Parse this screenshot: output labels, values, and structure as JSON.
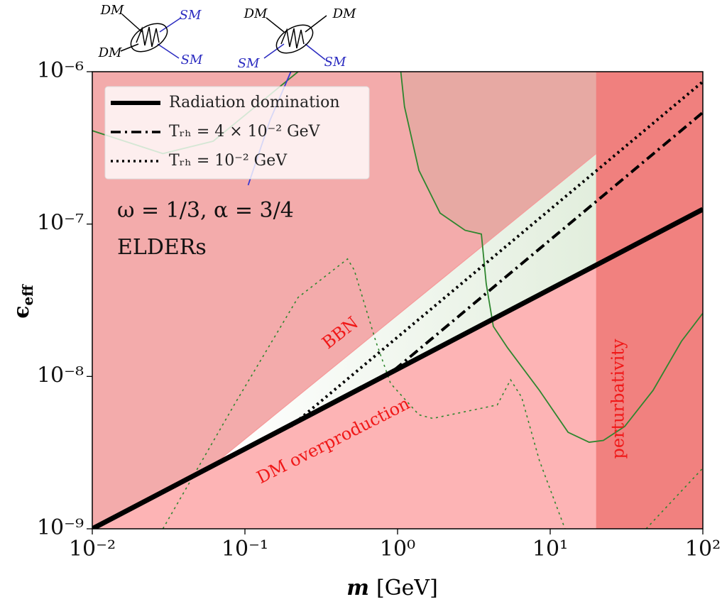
{
  "chart_data": {
    "type": "line",
    "xlabel": {
      "symbol": "m",
      "unit": "[GeV]"
    },
    "ylabel": {
      "symbol": "ϵ",
      "subscript": "eff"
    },
    "xscale": "log",
    "yscale": "log",
    "xlim": [
      0.01,
      100
    ],
    "ylim": [
      1e-09,
      1e-06
    ],
    "xticks": [
      {
        "value": 0.01,
        "label": "10⁻²"
      },
      {
        "value": 0.1,
        "label": "10⁻¹"
      },
      {
        "value": 1,
        "label": "10⁰"
      },
      {
        "value": 10,
        "label": "10¹"
      },
      {
        "value": 100,
        "label": "10²"
      }
    ],
    "yticks": [
      {
        "value": 1e-09,
        "label": "10⁻⁹"
      },
      {
        "value": 1e-08,
        "label": "10⁻⁸"
      },
      {
        "value": 1e-07,
        "label": "10⁻⁷"
      },
      {
        "value": 1e-06,
        "label": "10⁻⁶"
      }
    ],
    "legend": "upper left",
    "background": "#f3abab",
    "series": [
      {
        "name": "Radiation domination",
        "color": "#000000",
        "linestyle": "solid",
        "x": [
          0.01,
          100
        ],
        "values": [
          1e-09,
          1.25e-07
        ]
      },
      {
        "name": "Tᵣₕ = 4 × 10⁻² GeV",
        "color": "#000000",
        "linestyle": "dashdot",
        "x": [
          0.95,
          100
        ],
        "values": [
          1.1e-08,
          5.4e-07
        ]
      },
      {
        "name": "Tᵣₕ = 10⁻² GeV",
        "color": "#000000",
        "linestyle": "dotted",
        "x": [
          0.2,
          100
        ],
        "values": [
          4.7e-09,
          8.6e-07
        ]
      }
    ],
    "regions": [
      {
        "color": "#fdb4b5",
        "x": [
          0.01,
          100,
          100,
          0.01
        ],
        "y": [
          1e-09,
          1.25e-07,
          1e-09,
          1e-09
        ]
      },
      {
        "color": "#e7a9a3",
        "x": [
          1.05,
          1.11,
          1.38,
          1.9,
          2.77,
          3.54,
          3.81,
          4.3,
          20,
          20
        ],
        "y": [
          1e-06,
          5.9e-07,
          2.25e-07,
          1.18e-07,
          9.1e-08,
          8.6e-08,
          4.05e-08,
          2.3e-08,
          5.4e-08,
          1e-06
        ]
      },
      {
        "color": "#e2eedd",
        "x": [
          0.07,
          20,
          20
        ],
        "y": [
          2.9e-09,
          2.9e-07,
          5.4e-08
        ]
      },
      {
        "color": "#ef7876",
        "x": [
          20,
          100,
          100,
          20
        ],
        "y": [
          1e-09,
          1e-09,
          1e-06,
          1e-06
        ]
      }
    ],
    "curves": [
      {
        "color": "#2e862e",
        "linestyle": "solid",
        "x": [
          1.05,
          1.11,
          1.38,
          1.9,
          2.77,
          3.54,
          3.81,
          4.24,
          5.26,
          8.5,
          13.1,
          18.0,
          22.3,
          30.8,
          47.2,
          72.4,
          100
        ],
        "y": [
          1e-06,
          5.9e-07,
          2.25e-07,
          1.18e-07,
          9.1e-08,
          8.6e-08,
          4.05e-08,
          2.13e-08,
          1.54e-08,
          8.1e-09,
          4.3e-09,
          3.7e-09,
          3.8e-09,
          4.7e-09,
          8.1e-09,
          1.7e-08,
          2.6e-08
        ]
      },
      {
        "color": "#2e862e",
        "linestyle": "solid",
        "x": [
          0.01,
          0.029,
          0.062,
          0.223
        ],
        "y": [
          4.1e-07,
          2.9e-07,
          3.5e-07,
          1e-06
        ]
      },
      {
        "color": "#2e862e",
        "linestyle": "dotted",
        "x": [
          0.029,
          0.085,
          0.223,
          0.47,
          0.52,
          0.72,
          0.9,
          1.38,
          1.7,
          4.5,
          5.5,
          6.5,
          8.5,
          12.5
        ],
        "y": [
          1e-09,
          6.5e-09,
          3.3e-08,
          5.9e-08,
          5e-08,
          1.7e-08,
          9e-09,
          5.6e-09,
          5.3e-09,
          6.5e-09,
          9.5e-09,
          7.3e-09,
          2.8e-09,
          1e-09
        ]
      },
      {
        "color": "#2e862e",
        "linestyle": "dotted",
        "x": [
          42.5,
          100
        ],
        "y": [
          1e-09,
          2.5e-09
        ]
      },
      {
        "color": "#3a3ad0",
        "linestyle": "solid",
        "x": [
          0.2,
          0.146,
          0.105
        ],
        "y": [
          1e-06,
          4.8e-07,
          1.8e-07
        ]
      }
    ],
    "annotations": [
      "ω = 1/3, α = 3/4",
      "ELDERs",
      "BBN",
      "DM overproduction",
      "perturbativity"
    ]
  },
  "diagrams": [
    {
      "labels": [
        {
          "text": "DM",
          "color": "#000000"
        },
        {
          "text": "SM",
          "color": "#2a2ac0"
        },
        {
          "text": "DM",
          "color": "#000000"
        },
        {
          "text": "SM",
          "color": "#2a2ac0"
        }
      ]
    },
    {
      "labels": [
        {
          "text": "DM",
          "color": "#000000"
        },
        {
          "text": "DM",
          "color": "#000000"
        },
        {
          "text": "SM",
          "color": "#2a2ac0"
        },
        {
          "text": "SM",
          "color": "#2a2ac0"
        }
      ]
    }
  ]
}
